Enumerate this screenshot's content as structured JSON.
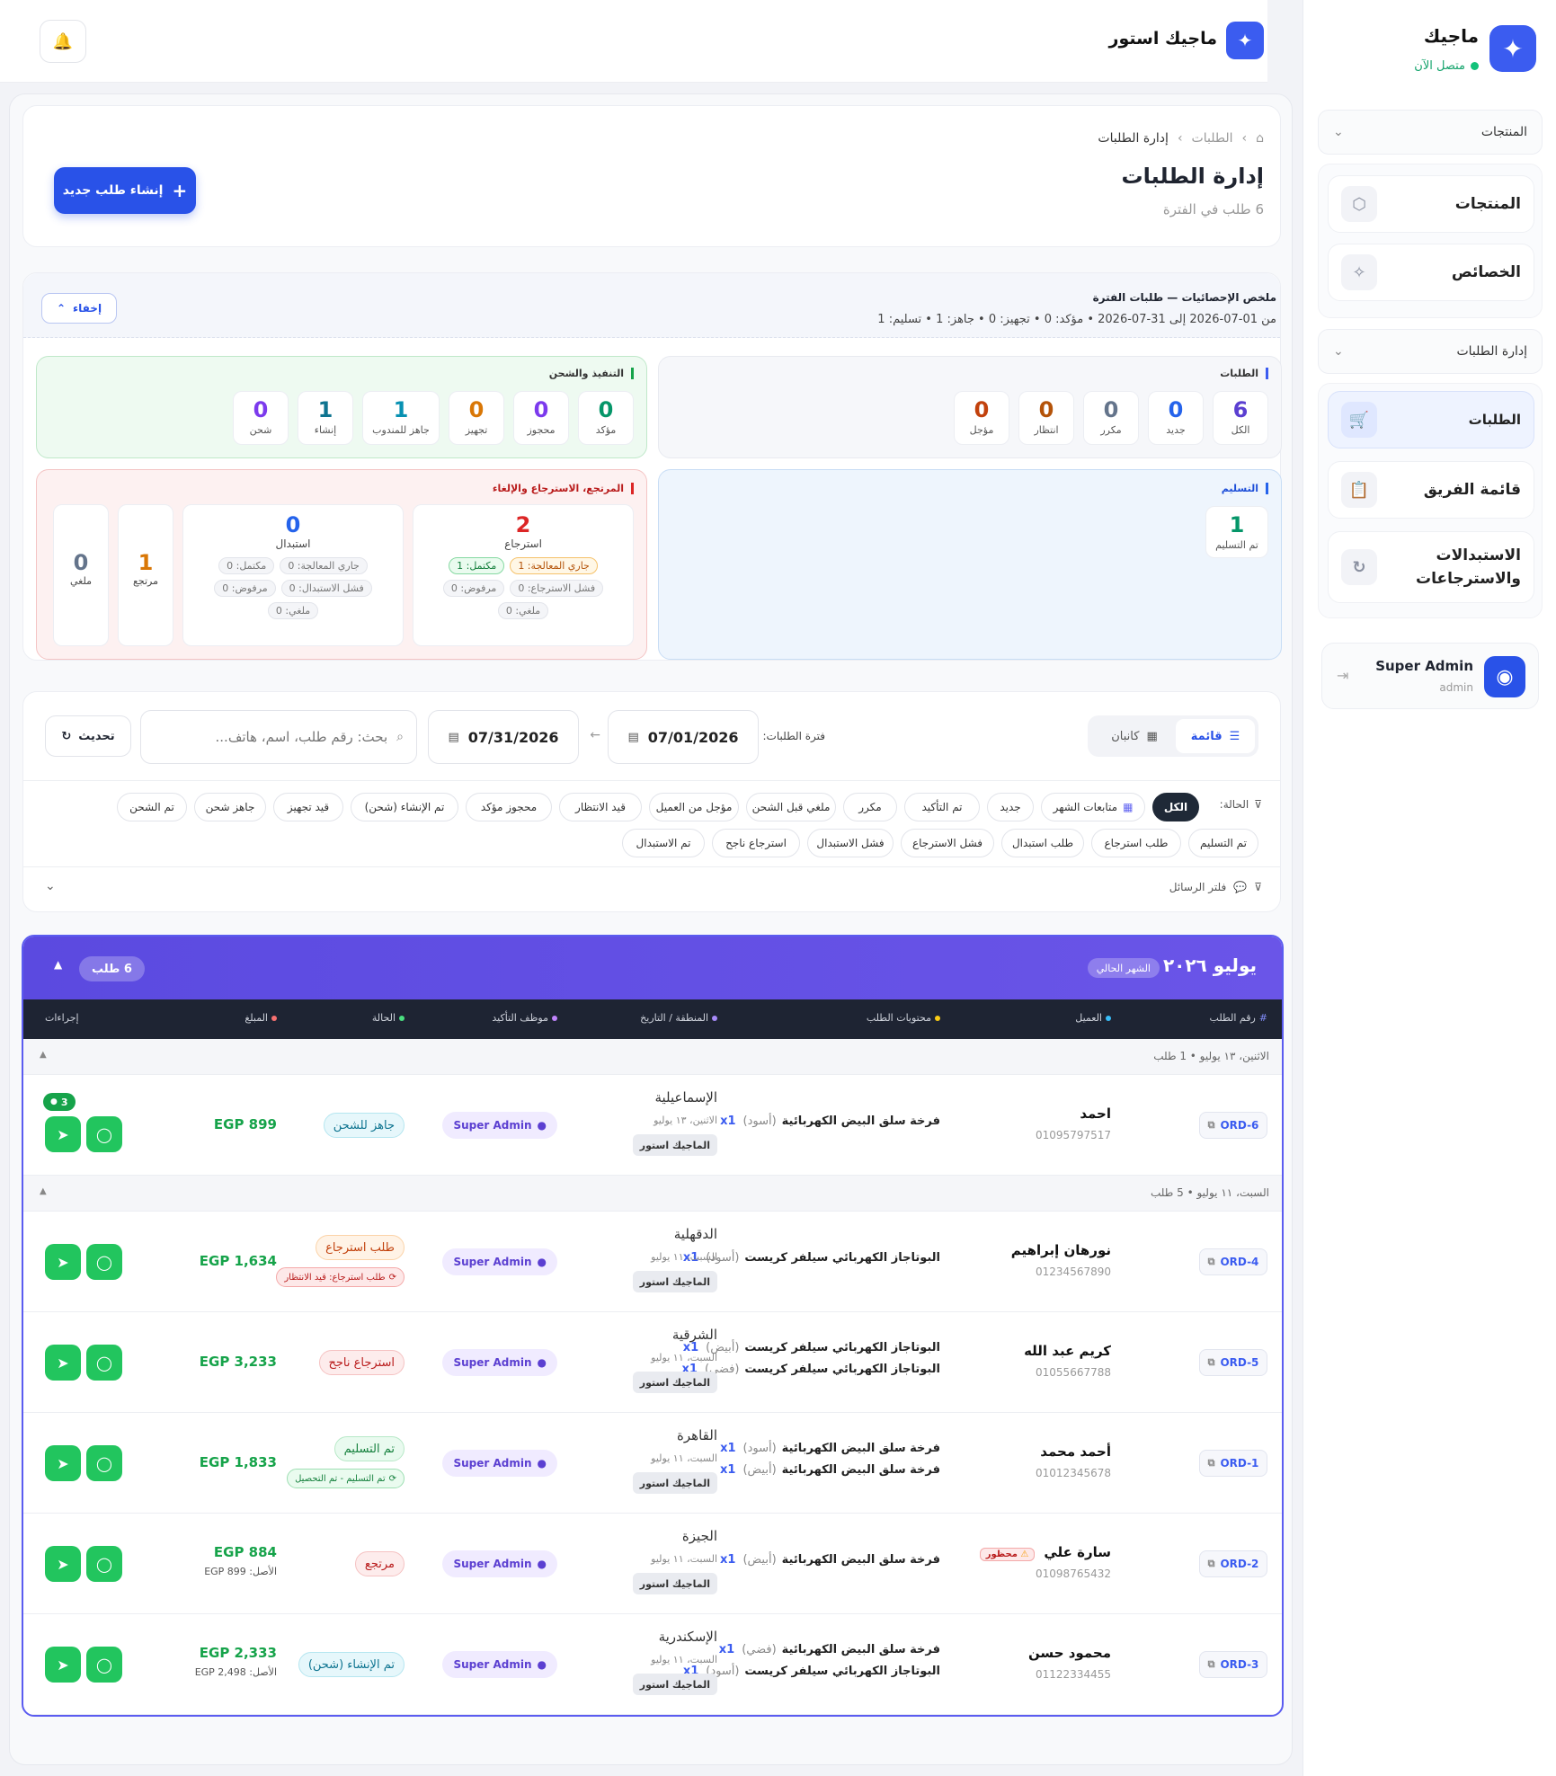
{
  "sidebar": {
    "brand": "ماجيك",
    "status": "متصل الآن",
    "sections": [
      {
        "title": "المنتجات",
        "items": [
          "المنتجات",
          "الخصائص"
        ]
      },
      {
        "title": "إدارة الطلبات",
        "items": [
          "الطلبات",
          "قائمة الفريق",
          "الاستبدالات والاسترجاعات"
        ]
      }
    ],
    "user": {
      "name": "Super Admin",
      "role": "admin"
    }
  },
  "topbar": {
    "store": "ماجيك استور"
  },
  "page": {
    "breadcrumb": [
      "الطلبات",
      "إدارة الطلبات"
    ],
    "title": "إدارة الطلبات",
    "subtitle": "6 طلب في الفترة",
    "create_button": "إنشاء طلب جديد"
  },
  "summary": {
    "title": "ملخص الإحصائيات — طلبات الفترة",
    "line": "من 01-07-2026 إلى 31-07-2026 • مؤكد: 0 • تجهيز: 0 • جاهز: 1 • تسليم: 1",
    "hide_button": "إخفاء",
    "orders": {
      "title": "الطلبات",
      "items": [
        {
          "n": "6",
          "l": "الكل",
          "c": "#5b3fd1"
        },
        {
          "n": "0",
          "l": "جديد",
          "c": "#2563eb"
        },
        {
          "n": "0",
          "l": "مكرر",
          "c": "#64748b"
        },
        {
          "n": "0",
          "l": "انتظار",
          "c": "#b45309"
        },
        {
          "n": "0",
          "l": "مؤجل",
          "c": "#c2410c"
        }
      ]
    },
    "fulfillment": {
      "title": "التنفيذ والشحن",
      "items": [
        {
          "n": "0",
          "l": "مؤكد",
          "c": "#059669"
        },
        {
          "n": "0",
          "l": "محجوز",
          "c": "#7c3aed"
        },
        {
          "n": "0",
          "l": "تجهيز",
          "c": "#d97706"
        },
        {
          "n": "1",
          "l": "جاهز للمندوب",
          "c": "#0891b2"
        },
        {
          "n": "1",
          "l": "إنشاء",
          "c": "#0e7490"
        },
        {
          "n": "0",
          "l": "شحن",
          "c": "#7c3aed"
        }
      ]
    },
    "delivery": {
      "title": "التسليم",
      "n": "1",
      "l": "تم التسليم"
    },
    "returns": {
      "title": "المرتجع، الاسترجاع والإلغاء",
      "return": {
        "n": "2",
        "l": "استرجاع",
        "pills": [
          "جاري المعالجة: 1",
          "مكتمل: 1",
          "فشل الاسترجاع: 0",
          "مرفوض: 0",
          "ملغي: 0"
        ]
      },
      "exchange": {
        "n": "0",
        "l": "استبدال",
        "pills": [
          "جاري المعالجة: 0",
          "مكتمل: 0",
          "فشل الاستبدال: 0",
          "مرفوض: 0",
          "ملغي: 0"
        ]
      },
      "returned": {
        "n": "1",
        "l": "مرتجع"
      },
      "cancelled": {
        "n": "0",
        "l": "ملغي"
      }
    }
  },
  "filters": {
    "view_list": "قائمة",
    "view_kanban": "كانبان",
    "period_label": "فترة الطلبات:",
    "date_from": "07/01/2026",
    "date_to": "07/31/2026",
    "search_placeholder": "بحث: رقم طلب، اسم، هاتف...",
    "refresh": "تحديث",
    "status_label": "الحالة:",
    "chips_row1": [
      "الكل",
      "متابعات الشهر",
      "جديد",
      "تم التأكيد",
      "مكرر",
      "ملغي قبل الشحن",
      "مؤجل من العميل",
      "قيد الانتظار",
      "محجوز مؤكد",
      "تم الإنشاء (شحن)",
      "قيد تجهيز",
      "جاهز شحن",
      "تم الشحن"
    ],
    "chips_row2": [
      "تم التسليم",
      "طلب استرجاع",
      "طلب استبدال",
      "فشل الاسترجاع",
      "فشل الاستبدال",
      "استرجاع ناجح",
      "تم الاستبدال"
    ],
    "messages_filter": "فلتر الرسائل"
  },
  "table": {
    "month": "يوليو ٢٠٢٦",
    "month_badge": "الشهر الحالي",
    "count_badge": "6 طلب",
    "columns": [
      "رقم الطلب",
      "العميل",
      "محتويات الطلب",
      "المنطقة / التاريخ",
      "موظف التأكيد",
      "الحالة",
      "المبلغ",
      "إجراءات"
    ],
    "groups": [
      {
        "label": "الاثنين، ١٣ يوليو • 1 طلب"
      },
      {
        "label": "السبت، ١١ يوليو • 5 طلب"
      }
    ],
    "rows": [
      {
        "id": "ORD-6",
        "name": "احمد",
        "phone": "01095797517",
        "items": [
          {
            "name": "فرخة سلق البيض الكهربائية",
            "var": "(أسود)",
            "qty": "x1"
          }
        ],
        "region": "الإسماعيلية",
        "date": "الاثنين، ١٣ يوليو",
        "store": "الماجيك استور",
        "staff": "Super Admin",
        "status": "جاهز للشحن",
        "amount": "EGP 899",
        "msgs": "3"
      },
      {
        "id": "ORD-4",
        "name": "نورهان إبراهيم",
        "phone": "01234567890",
        "items": [
          {
            "name": "البوتاجاز الكهربائي سيلفر كريست",
            "var": "(أسود)",
            "qty": "x1"
          }
        ],
        "region": "الدقهلية",
        "date": "السبت، ١١ يوليو",
        "store": "الماجيك استور",
        "staff": "Super Admin",
        "status": "طلب استرجاع",
        "sub": "طلب استرجاع: قيد الانتظار",
        "amount": "EGP 1,634"
      },
      {
        "id": "ORD-5",
        "name": "كريم عبد الله",
        "phone": "01055667788",
        "items": [
          {
            "name": "البوتاجاز الكهربائي سيلفر كريست",
            "var": "(أبيض)",
            "qty": "x1"
          },
          {
            "name": "البوتاجاز الكهربائي سيلفر كريست",
            "var": "(فضي)",
            "qty": "x1"
          }
        ],
        "region": "الشرقية",
        "date": "السبت، ١١ يوليو",
        "store": "الماجيك استور",
        "staff": "Super Admin",
        "status": "استرجاع ناجح",
        "amount": "EGP 3,233"
      },
      {
        "id": "ORD-1",
        "name": "أحمد محمد",
        "phone": "01012345678",
        "items": [
          {
            "name": "فرخة سلق البيض الكهربائية",
            "var": "(أسود)",
            "qty": "x1"
          },
          {
            "name": "فرخة سلق البيض الكهربائية",
            "var": "(أبيض)",
            "qty": "x1"
          }
        ],
        "region": "القاهرة",
        "date": "السبت، ١١ يوليو",
        "store": "الماجيك استور",
        "staff": "Super Admin",
        "status": "تم التسليم",
        "sub": "تم التسليم - تم التحصيل",
        "amount": "EGP 1,833"
      },
      {
        "id": "ORD-2",
        "name": "سارة علي",
        "badge": "محظور",
        "phone": "01098765432",
        "items": [
          {
            "name": "فرخة سلق البيض الكهربائية",
            "var": "(أبيض)",
            "qty": "x1"
          }
        ],
        "region": "الجيزة",
        "date": "السبت، ١١ يوليو",
        "store": "الماجيك استور",
        "staff": "Super Admin",
        "status": "مرتجع",
        "amount": "EGP 884",
        "orig": "الأصل: EGP 899"
      },
      {
        "id": "ORD-3",
        "name": "محمود حسن",
        "phone": "01122334455",
        "items": [
          {
            "name": "فرخة سلق البيض الكهربائية",
            "var": "(فضي)",
            "qty": "x1"
          },
          {
            "name": "البوتاجاز الكهربائي سيلفر كريست",
            "var": "(أسود)",
            "qty": "x1"
          }
        ],
        "region": "الإسكندرية",
        "date": "السبت، ١١ يوليو",
        "store": "الماجيك استور",
        "staff": "Super Admin",
        "status": "تم الإنشاء (شحن)",
        "amount": "EGP 2,333",
        "orig": "الأصل: EGP 2,498"
      }
    ]
  },
  "colors": {
    "accent": "#2952e8",
    "banner": "#5b4ae0",
    "success": "#22c55e"
  }
}
